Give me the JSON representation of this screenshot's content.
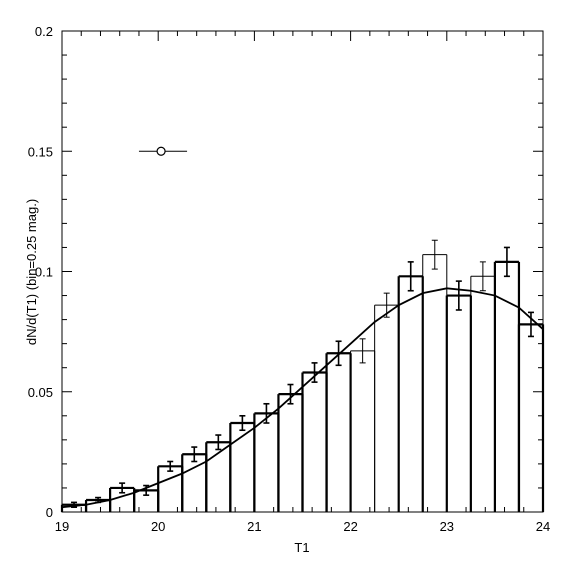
{
  "chart_data": {
    "type": "histogram",
    "title": "",
    "xlabel": "T1",
    "ylabel": "dN/d(T1) (bin=0.25 mag.)",
    "xlim": [
      19,
      24
    ],
    "ylim": [
      0,
      0.2
    ],
    "x_ticks": [
      "19",
      "20",
      "21",
      "22",
      "23",
      "24"
    ],
    "y_ticks": [
      "0",
      "0.05",
      "0.1",
      "0.15",
      "0.2"
    ],
    "grid": false,
    "bin_width": 0.25,
    "series": [
      {
        "style": "thick-step",
        "bins": [
          {
            "x0": 19.0,
            "x1": 19.25,
            "y": 0.003,
            "err": 0.001
          },
          {
            "x0": 19.25,
            "x1": 19.5,
            "y": 0.005,
            "err": 0.001
          },
          {
            "x0": 19.5,
            "x1": 19.75,
            "y": 0.01,
            "err": 0.002
          },
          {
            "x0": 19.75,
            "x1": 20.0,
            "y": 0.009,
            "err": 0.002
          },
          {
            "x0": 20.0,
            "x1": 20.25,
            "y": 0.019,
            "err": 0.002
          },
          {
            "x0": 20.25,
            "x1": 20.5,
            "y": 0.024,
            "err": 0.003
          },
          {
            "x0": 20.5,
            "x1": 20.75,
            "y": 0.029,
            "err": 0.003
          },
          {
            "x0": 20.75,
            "x1": 21.0,
            "y": 0.037,
            "err": 0.003
          },
          {
            "x0": 21.0,
            "x1": 21.25,
            "y": 0.041,
            "err": 0.004
          },
          {
            "x0": 21.25,
            "x1": 21.5,
            "y": 0.049,
            "err": 0.004
          },
          {
            "x0": 21.5,
            "x1": 21.75,
            "y": 0.058,
            "err": 0.004
          },
          {
            "x0": 21.75,
            "x1": 22.0,
            "y": 0.066,
            "err": 0.005
          },
          {
            "x0": 22.5,
            "x1": 22.75,
            "y": 0.098,
            "err": 0.006
          },
          {
            "x0": 23.0,
            "x1": 23.25,
            "y": 0.09,
            "err": 0.006
          },
          {
            "x0": 23.5,
            "x1": 23.75,
            "y": 0.104,
            "err": 0.006
          },
          {
            "x0": 23.75,
            "x1": 24.0,
            "y": 0.078,
            "err": 0.005
          }
        ]
      },
      {
        "style": "thin-step",
        "bins": [
          {
            "x0": 22.0,
            "x1": 22.25,
            "y": 0.067,
            "err": 0.005
          },
          {
            "x0": 22.25,
            "x1": 22.5,
            "y": 0.086,
            "err": 0.005
          },
          {
            "x0": 22.75,
            "x1": 23.0,
            "y": 0.107,
            "err": 0.006
          },
          {
            "x0": 23.25,
            "x1": 23.5,
            "y": 0.098,
            "err": 0.006
          }
        ]
      },
      {
        "style": "model-curve",
        "x": [
          19.0,
          19.25,
          19.5,
          19.75,
          20.0,
          20.25,
          20.5,
          20.75,
          21.0,
          21.25,
          21.5,
          21.75,
          22.0,
          22.25,
          22.5,
          22.75,
          23.0,
          23.25,
          23.5,
          23.75,
          24.0
        ],
        "y": [
          0.002,
          0.003,
          0.005,
          0.008,
          0.012,
          0.016,
          0.021,
          0.028,
          0.035,
          0.043,
          0.052,
          0.061,
          0.07,
          0.079,
          0.086,
          0.091,
          0.093,
          0.092,
          0.09,
          0.085,
          0.076
        ]
      }
    ],
    "annotation": {
      "marker": "open-circle",
      "x": 20.03,
      "y": 0.15,
      "xerr_low": 19.8,
      "xerr_high": 20.3
    }
  }
}
